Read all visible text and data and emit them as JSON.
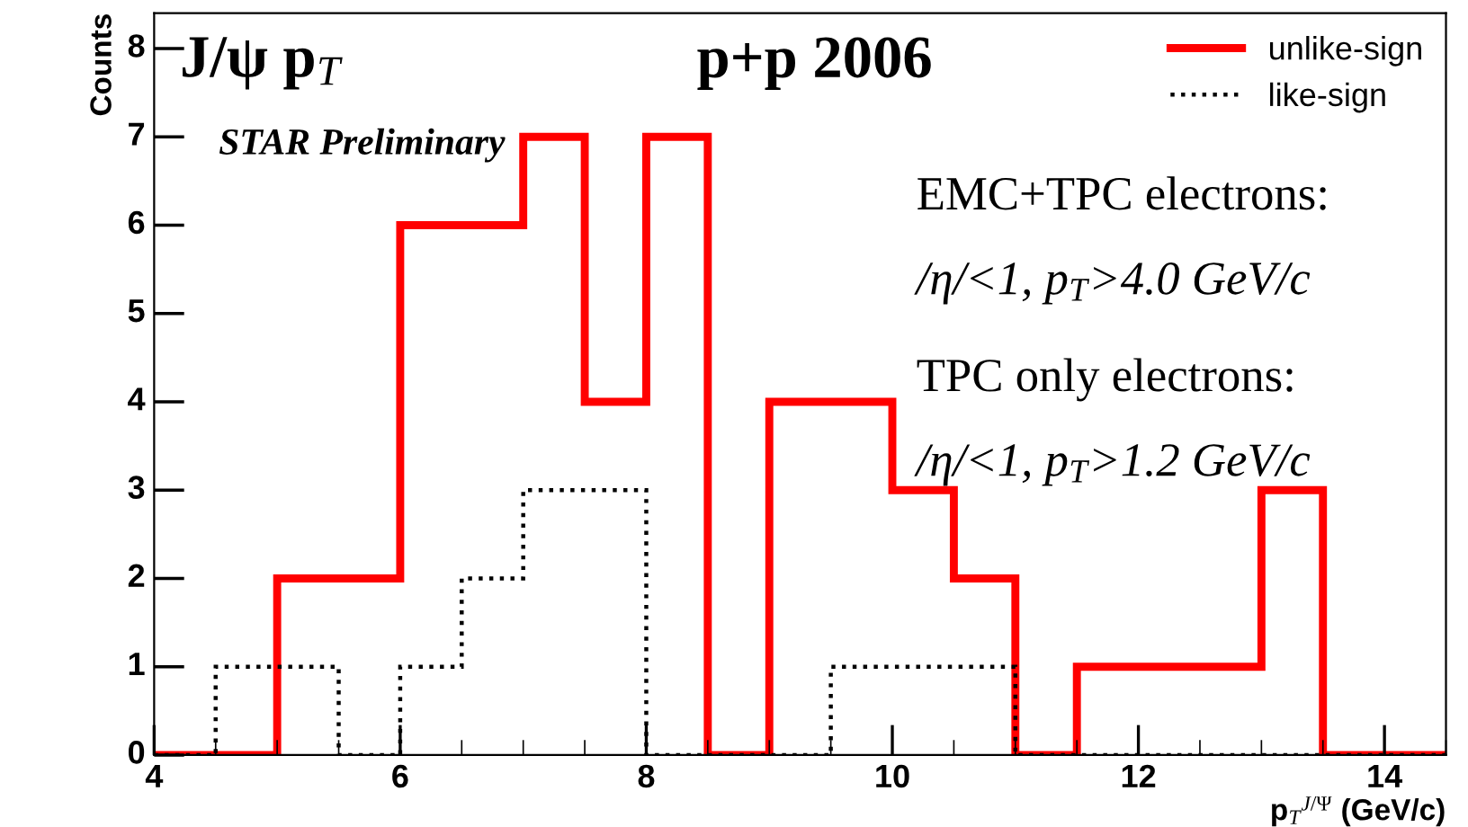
{
  "chart_data": {
    "type": "histogram",
    "title": "J/ψ p$_{T}$",
    "subtitle": "STAR Preliminary",
    "xlabel": "p$_{T}$$^{J/Ψ}$ (GeV/c)",
    "ylabel": "Counts",
    "bins": [
      4,
      4.5,
      5,
      5.5,
      6,
      6.5,
      7,
      7.5,
      8,
      8.5,
      9,
      9.5,
      10,
      10.5,
      11,
      11.5,
      12,
      12.5,
      13,
      13.5,
      14,
      14.5
    ],
    "series": [
      {
        "name": "unlike-sign",
        "color": "#ff0000",
        "line_style": "solid",
        "values": [
          0,
          0,
          2,
          2,
          6,
          6,
          7,
          4,
          7,
          0,
          4,
          4,
          3,
          2,
          0,
          1,
          1,
          1,
          3,
          0,
          0
        ]
      },
      {
        "name": "like-sign",
        "color": "#000000",
        "line_style": "dotted",
        "values": [
          0,
          1,
          1,
          0,
          1,
          2,
          3,
          3,
          0,
          0,
          0,
          1,
          1,
          1,
          0,
          0,
          0,
          0,
          0,
          0,
          0
        ]
      }
    ],
    "xlim": [
      4,
      14.5
    ],
    "ylim": [
      0,
      8.4
    ],
    "xticks": [
      4,
      6,
      8,
      10,
      12,
      14
    ],
    "yticks": [
      0,
      1,
      2,
      3,
      4,
      5,
      6,
      7,
      8
    ],
    "grid": false,
    "legend": "top right",
    "annotations": [
      "p+p 2006",
      "EMC+TPC electrons:",
      "/η/<1, p$_{T}$>4.0 GeV/c",
      "TPC only electrons:",
      "/η/<1, p$_{T}$>1.2 GeV/c"
    ]
  }
}
